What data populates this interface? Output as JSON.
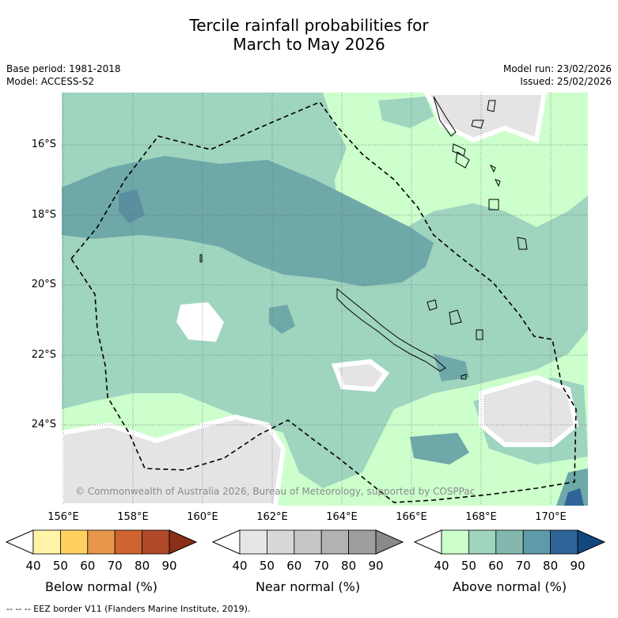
{
  "title": {
    "line1": "Tercile rainfall probabilities for",
    "line2": "March to May 2026"
  },
  "meta": {
    "base_period": "Base period: 1981-2018",
    "model": "Model: ACCESS-S2",
    "model_run": "Model run: 23/02/2026",
    "issued": "Issued: 25/02/2026"
  },
  "latitudes": [
    "16°S",
    "18°S",
    "20°S",
    "22°S",
    "24°S"
  ],
  "longitudes": [
    "156°E",
    "158°E",
    "160°E",
    "162°E",
    "164°E",
    "166°E",
    "168°E",
    "170°E"
  ],
  "copyright": "© Commonwealth of Australia 2026, Bureau of Meteorology, supported by COSPPac",
  "colorbars": [
    {
      "label": "Below normal (%)",
      "ticks": [
        "40",
        "50",
        "60",
        "70",
        "80",
        "90"
      ],
      "colors": [
        "#fff4a8",
        "#ffd060",
        "#e8964c",
        "#d06430",
        "#b04a28",
        "#8a3018"
      ]
    },
    {
      "label": "Near normal (%)",
      "ticks": [
        "40",
        "50",
        "60",
        "70",
        "80",
        "90"
      ],
      "colors": [
        "#e6e6e6",
        "#d8d8d8",
        "#c6c6c6",
        "#b2b2b2",
        "#9e9e9e",
        "#8a8a8a"
      ]
    },
    {
      "label": "Above normal (%)",
      "ticks": [
        "40",
        "50",
        "60",
        "70",
        "80",
        "90"
      ],
      "colors": [
        "#ccffcc",
        "#9fd4bf",
        "#84b8ae",
        "#5e9aa8",
        "#2e6498",
        "#124880"
      ]
    }
  ],
  "eez_legend": "-- -- -- EEZ border V11 (Flanders Marine Institute, 2019)."
}
